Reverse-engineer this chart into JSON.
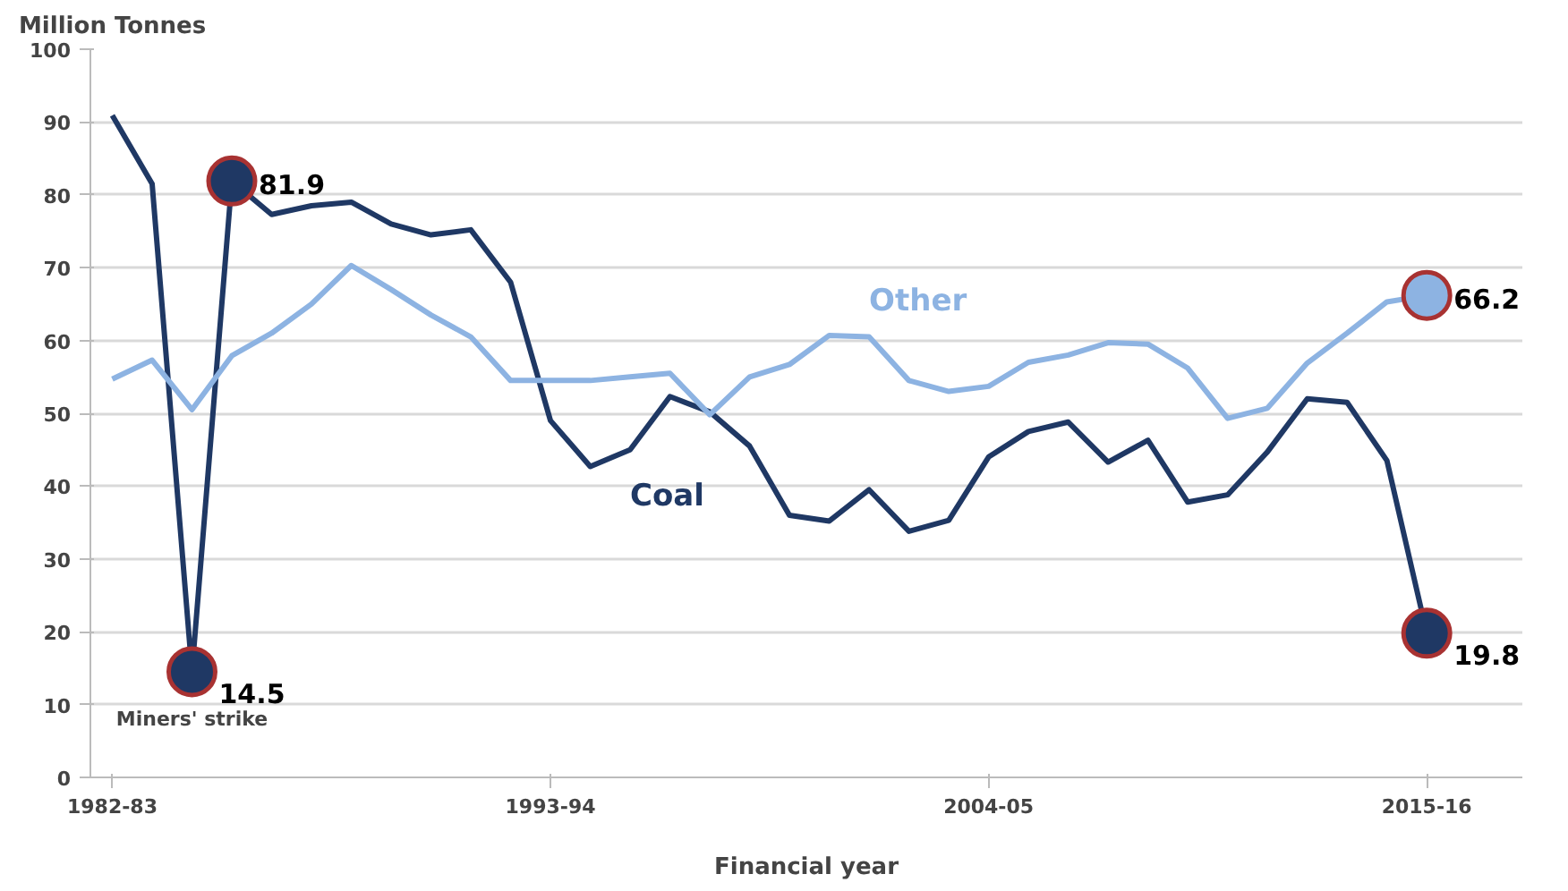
{
  "chart_data": {
    "type": "line",
    "ylabel": "Million Tonnes",
    "xlabel": "Financial year",
    "categories": [
      "1982-83",
      null,
      null,
      null,
      null,
      null,
      null,
      null,
      null,
      null,
      null,
      "1993-94",
      null,
      null,
      null,
      null,
      null,
      null,
      null,
      null,
      null,
      null,
      "2004-05",
      null,
      null,
      null,
      null,
      null,
      null,
      null,
      null,
      null,
      null,
      "2015-16"
    ],
    "ylim": [
      0,
      100
    ],
    "yticks": [
      0,
      10,
      20,
      30,
      40,
      50,
      60,
      70,
      80,
      90,
      100
    ],
    "grid": "y",
    "marker": "none",
    "line_style": "solid",
    "series": [
      {
        "name": "Coal",
        "color": "#1f3864",
        "values": [
          90.9,
          81.5,
          14.5,
          81.9,
          77.3,
          78.5,
          79.0,
          76.0,
          74.5,
          75.2,
          68,
          49,
          42.7,
          45,
          52.3,
          50.2,
          45.5,
          36,
          35.2,
          39.5,
          33.8,
          35.3,
          44,
          47.5,
          48.8,
          43.3,
          46.3,
          37.8,
          38.8,
          44.7,
          52,
          51.5,
          43.5,
          19.8
        ],
        "value_labels": [
          null,
          null,
          "14.5",
          "81.9",
          null,
          null,
          null,
          null,
          null,
          null,
          null,
          null,
          null,
          null,
          null,
          null,
          null,
          null,
          null,
          null,
          null,
          null,
          null,
          null,
          null,
          null,
          null,
          null,
          null,
          null,
          null,
          null,
          null,
          "19.8"
        ]
      },
      {
        "name": "Other",
        "color": "#8db3e2",
        "values": [
          54.7,
          57.3,
          50.5,
          57.9,
          61,
          65,
          70.3,
          67,
          63.5,
          60.5,
          54.5,
          54.5,
          54.5,
          55,
          55.5,
          49.8,
          55,
          56.7,
          60.7,
          60.5,
          54.5,
          53,
          53.7,
          57,
          58,
          59.7,
          59.5,
          56.2,
          49.3,
          50.7,
          56.9,
          61,
          65.3,
          66.2
        ],
        "value_labels": [
          null,
          null,
          null,
          null,
          null,
          null,
          null,
          null,
          null,
          null,
          null,
          null,
          null,
          null,
          null,
          null,
          null,
          null,
          null,
          null,
          null,
          null,
          null,
          null,
          null,
          null,
          null,
          null,
          null,
          null,
          null,
          null,
          null,
          "66.2"
        ]
      }
    ],
    "annotations": [
      {
        "text": "Miners' strike",
        "y": 14.5
      }
    ]
  }
}
